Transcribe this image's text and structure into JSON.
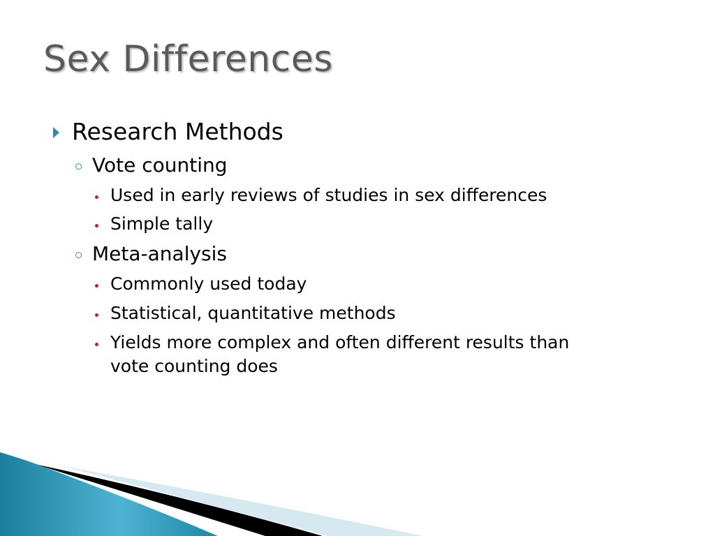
{
  "slide": {
    "title": "Sex Differences",
    "bullets": [
      {
        "text": "Research Methods"
      },
      {
        "text": "Vote counting"
      },
      {
        "text": "Used in early reviews of studies in sex differences"
      },
      {
        "text": "Simple tally"
      },
      {
        "text": "Meta-analysis"
      },
      {
        "text": "Commonly used today"
      },
      {
        "text": "Statistical, quantitative methods"
      },
      {
        "text": "Yields more complex and often different results than"
      },
      {
        "text": "vote counting does"
      }
    ]
  },
  "colors": {
    "accent": "#2c8fa8",
    "bullet_level3": "#d0182c",
    "title": "#5a5a5a"
  }
}
